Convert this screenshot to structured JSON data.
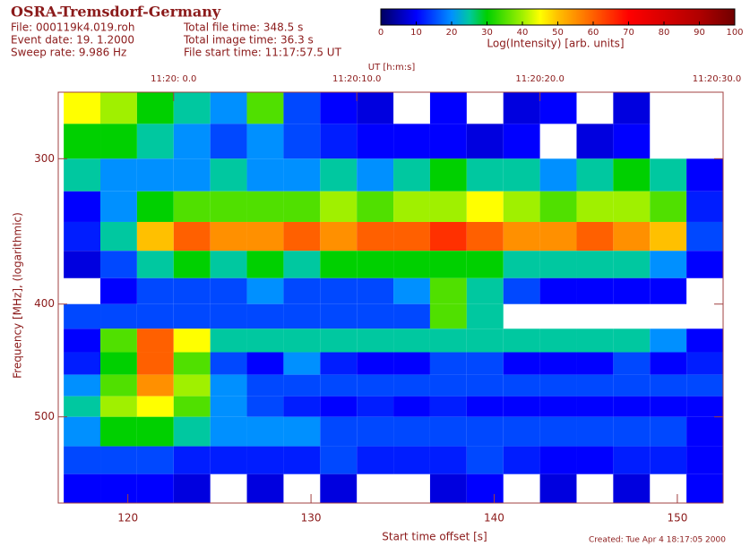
{
  "chart_data": {
    "type": "heatmap",
    "title": "OSRA-Tremsdorf-Germany",
    "info_left": [
      "File: 000119k4.019.roh",
      "Event date: 19. 1.2000",
      "Sweep rate: 9.986 Hz"
    ],
    "info_right": [
      "Total file time: 348.5 s",
      "Total image time: 36.3 s",
      "File start time: 11:17:57.5 UT"
    ],
    "colorbar": {
      "label": "Log(Intensity) [arb. units]",
      "lim": [
        0,
        100
      ],
      "ticks": [
        0,
        10,
        20,
        30,
        40,
        50,
        60,
        70,
        80,
        90,
        100
      ]
    },
    "x2_label": "UT [h:m:s]",
    "x2ticks": [
      {
        "value": 122.5,
        "label": "11:20: 0.0"
      },
      {
        "value": 132.5,
        "label": "11:20:10.0"
      },
      {
        "value": 142.5,
        "label": "11:20:20.0"
      },
      {
        "value": 152.5,
        "label": "11:20:30.0"
      }
    ],
    "x_label": "Start time offset [s]",
    "y_label": "Frequency [MHz], (logarithmic)",
    "footer": "Created: Tue Apr  4 18:17:05 2000",
    "xlim": [
      116.2,
      152.5
    ],
    "xticks": [
      120,
      130,
      140,
      150
    ],
    "ylim": [
      263,
      593
    ],
    "yticks": [
      300,
      400,
      500
    ],
    "log_y": true,
    "y_inverted": true,
    "x_bins": [
      116.5,
      118.5,
      120.5,
      122.5,
      124.5,
      126.5,
      128.5,
      130.5,
      132.5,
      134.5,
      136.5,
      138.5,
      140.5,
      142.5,
      144.5,
      146.5,
      148.5,
      150.5,
      152.5
    ],
    "y_bins": [
      263,
      280,
      300,
      320,
      340,
      360,
      380,
      400,
      420,
      440,
      460,
      480,
      500,
      530,
      560,
      593
    ],
    "z": [
      [
        45,
        40,
        30,
        25,
        20,
        35,
        15,
        10,
        8,
        null,
        10,
        null,
        8,
        10,
        null,
        8,
        null,
        null
      ],
      [
        30,
        30,
        25,
        20,
        15,
        20,
        15,
        12,
        10,
        10,
        10,
        8,
        10,
        null,
        8,
        10,
        null,
        null
      ],
      [
        25,
        20,
        20,
        20,
        25,
        20,
        20,
        25,
        20,
        25,
        30,
        25,
        25,
        20,
        25,
        30,
        25,
        10
      ],
      [
        10,
        20,
        30,
        35,
        35,
        35,
        35,
        40,
        35,
        40,
        40,
        45,
        40,
        35,
        40,
        40,
        35,
        12
      ],
      [
        12,
        25,
        50,
        60,
        55,
        55,
        60,
        55,
        60,
        60,
        65,
        60,
        55,
        55,
        60,
        55,
        50,
        15
      ],
      [
        8,
        15,
        25,
        30,
        25,
        30,
        25,
        30,
        30,
        30,
        30,
        30,
        25,
        25,
        25,
        25,
        20,
        10
      ],
      [
        null,
        10,
        15,
        15,
        15,
        20,
        15,
        15,
        15,
        20,
        35,
        25,
        15,
        10,
        10,
        10,
        10,
        null
      ],
      [
        15,
        15,
        15,
        15,
        15,
        15,
        15,
        15,
        15,
        15,
        35,
        25,
        null,
        null,
        null,
        null,
        null,
        null
      ],
      [
        10,
        35,
        60,
        45,
        25,
        25,
        25,
        25,
        25,
        25,
        25,
        25,
        25,
        25,
        25,
        25,
        20,
        10
      ],
      [
        12,
        30,
        60,
        35,
        15,
        10,
        20,
        12,
        10,
        10,
        15,
        15,
        10,
        10,
        10,
        15,
        10,
        12
      ],
      [
        20,
        35,
        55,
        40,
        20,
        15,
        15,
        15,
        15,
        15,
        15,
        15,
        15,
        15,
        15,
        15,
        15,
        15
      ],
      [
        25,
        40,
        45,
        35,
        20,
        15,
        12,
        10,
        12,
        10,
        12,
        10,
        10,
        10,
        10,
        10,
        10,
        10
      ],
      [
        20,
        30,
        30,
        25,
        20,
        20,
        20,
        15,
        15,
        15,
        15,
        15,
        15,
        15,
        15,
        15,
        15,
        10
      ],
      [
        15,
        15,
        15,
        12,
        12,
        12,
        12,
        15,
        12,
        12,
        12,
        15,
        12,
        10,
        10,
        12,
        12,
        10
      ],
      [
        10,
        10,
        10,
        8,
        null,
        8,
        null,
        8,
        null,
        null,
        8,
        10,
        null,
        8,
        null,
        8,
        null,
        10
      ]
    ]
  }
}
